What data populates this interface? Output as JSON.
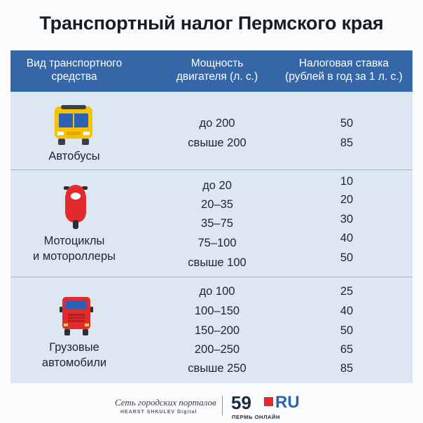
{
  "title": "Транспортный налог Пермского края",
  "columns": {
    "vehicle_type": [
      "Вид транспортного",
      "средства"
    ],
    "engine_power": [
      "Мощность",
      "двигателя (л. с.)"
    ],
    "tax_rate": [
      "Налоговая ставка",
      "(рублей в год за 1 л. с.)"
    ]
  },
  "sections": [
    {
      "icon": "bus-icon",
      "label": [
        "Автобусы"
      ],
      "rows": [
        {
          "power": "до 200",
          "rate": "50"
        },
        {
          "power": "свыше 200",
          "rate": "85"
        }
      ]
    },
    {
      "icon": "motorcycle-icon",
      "label": [
        "Мотоциклы",
        "и мотороллеры"
      ],
      "rows": [
        {
          "power": "до 20",
          "rate": "10"
        },
        {
          "power": "20–35",
          "rate": "20"
        },
        {
          "power": "35–75",
          "rate": "30"
        },
        {
          "power": "75–100",
          "rate": "40"
        },
        {
          "power": "свыше 100",
          "rate": "50"
        }
      ]
    },
    {
      "icon": "truck-icon",
      "label": [
        "Грузовые",
        "автомобили"
      ],
      "rows": [
        {
          "power": "до 100",
          "rate": "25"
        },
        {
          "power": "100–150",
          "rate": "40"
        },
        {
          "power": "150–200",
          "rate": "50"
        },
        {
          "power": "200–250",
          "rate": "65"
        },
        {
          "power": "свыше 250",
          "rate": "85"
        }
      ]
    }
  ],
  "footer": {
    "network_name": "Сеть городских порталов",
    "network_sub": "HEARST SHKULEV Digital",
    "logo_number": "59",
    "logo_ru": "RU",
    "logo_sub": "ПЕРМЬ ОНЛАЙН"
  },
  "colors": {
    "header_bg": "#3567a8",
    "table_bg": "#dce7f2",
    "accent_red": "#e32a2f",
    "accent_blue": "#2a63b6"
  }
}
